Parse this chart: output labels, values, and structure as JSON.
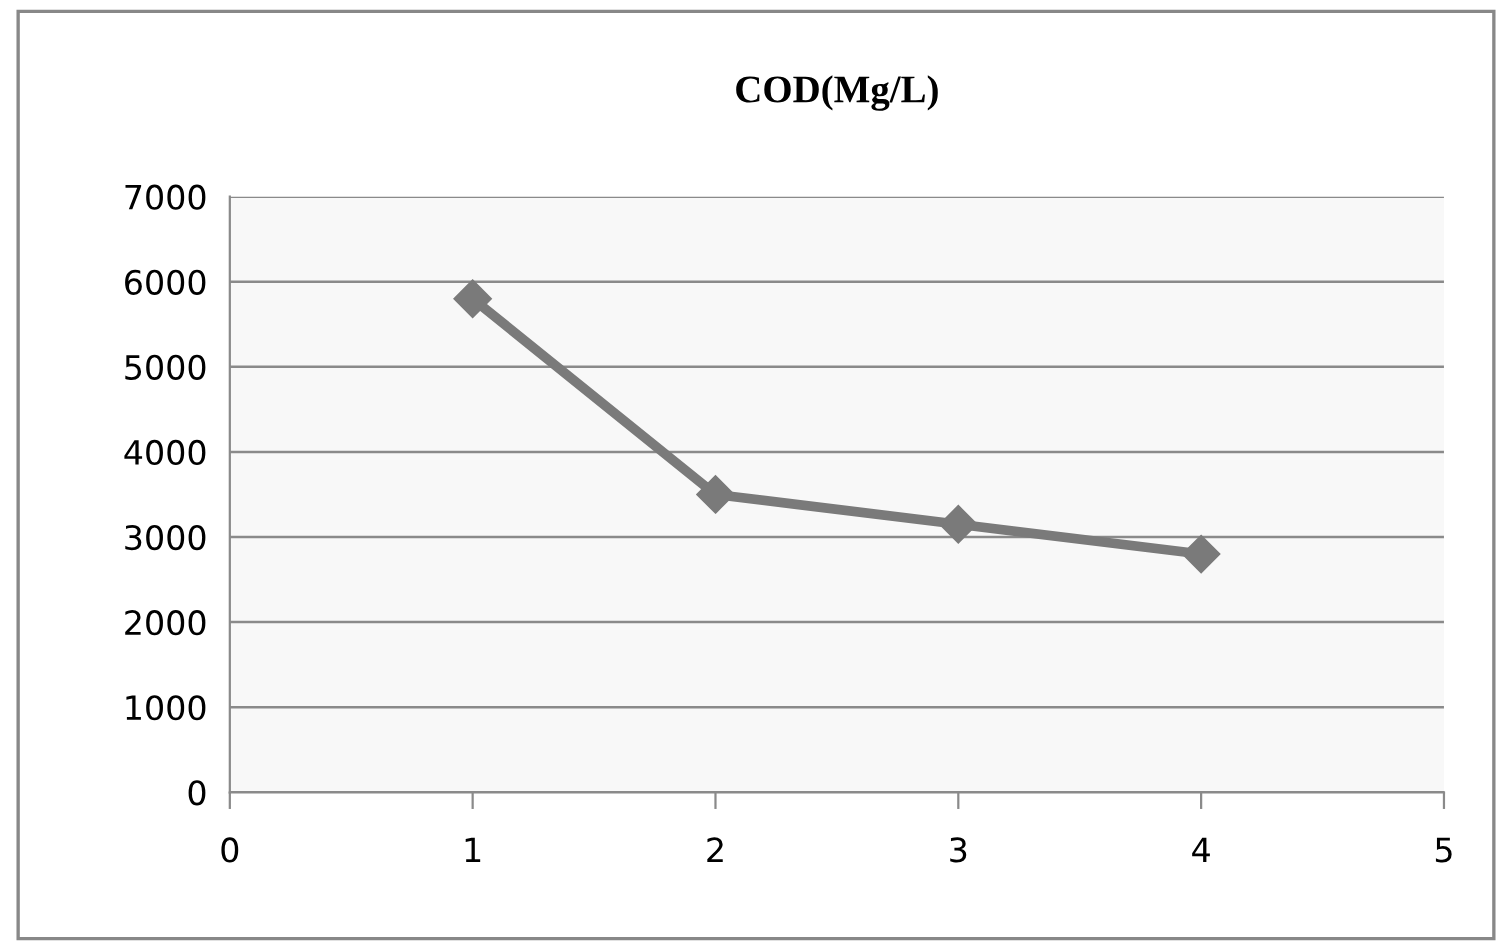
{
  "chart_data": {
    "type": "line",
    "title": "COD(Mg/L)",
    "x": [
      1,
      2,
      3,
      4
    ],
    "series": [
      {
        "color": "#7a7a7a",
        "values": [
          5800,
          3500,
          3150,
          2800
        ]
      }
    ],
    "xlim": [
      0,
      5
    ],
    "xticks": [
      0,
      1,
      2,
      3,
      4,
      5
    ],
    "ylim": [
      0,
      7000
    ],
    "yticks": [
      0,
      1000,
      2000,
      3000,
      4000,
      5000,
      6000,
      7000
    ],
    "grid": "y",
    "marker": "diamond",
    "line_style": "solid",
    "legend": false
  }
}
